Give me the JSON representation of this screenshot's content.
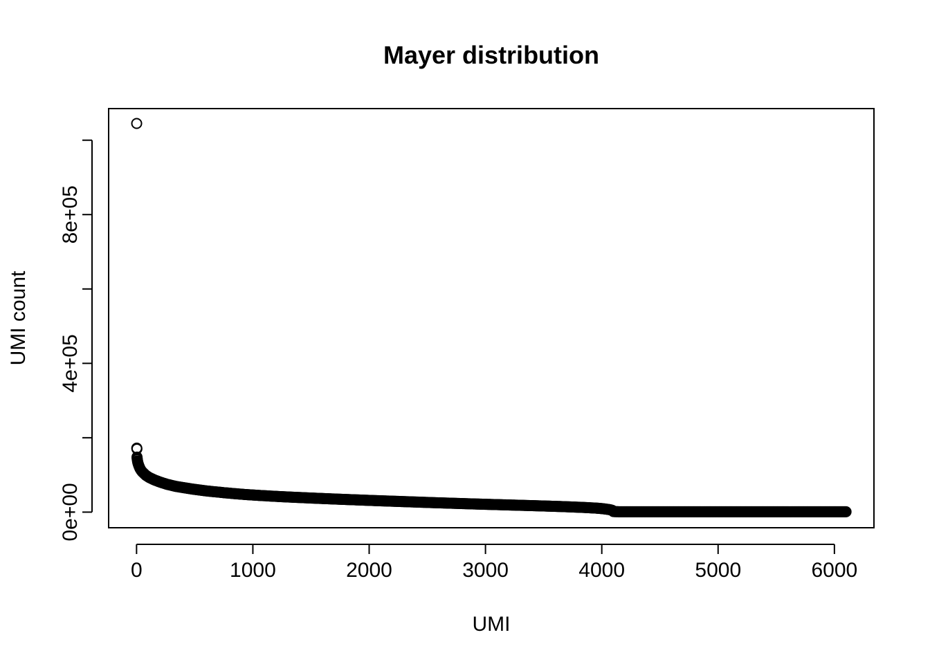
{
  "chart_data": {
    "type": "scatter",
    "title": "Mayer distribution",
    "xlabel": "UMI",
    "ylabel": "UMI count",
    "xlim": [
      -240,
      6340
    ],
    "ylim": [
      -42000,
      1085000
    ],
    "x_ticks": [
      0,
      1000,
      2000,
      3000,
      4000,
      5000,
      6000
    ],
    "x_tick_labels": [
      "0",
      "1000",
      "2000",
      "3000",
      "4000",
      "5000",
      "6000"
    ],
    "y_ticks": [
      0,
      200000,
      400000,
      600000,
      800000,
      1000000
    ],
    "y_tick_labels": [
      "0e+00",
      "",
      "4e+05",
      "",
      "8e+05",
      ""
    ],
    "grid": false,
    "legend": "none",
    "marker": "open-circle",
    "color": "#000000",
    "series": [
      {
        "x": [
          1,
          2,
          3,
          4,
          5,
          6,
          8,
          10,
          12,
          15,
          18,
          22,
          26,
          30,
          36,
          42,
          50,
          60,
          70,
          80,
          95,
          110,
          130,
          150,
          175,
          200,
          230,
          260,
          300,
          340,
          380,
          430,
          480,
          540,
          600,
          680,
          760,
          850,
          950,
          1050,
          1150,
          1250,
          1350,
          1450,
          1550,
          1650,
          1750,
          1850,
          1950,
          2050,
          2150,
          2250,
          2350,
          2450,
          2550,
          2650,
          2750,
          2850,
          2950,
          3050,
          3150,
          3250,
          3350,
          3450,
          3550,
          3650,
          3750,
          3850,
          3950,
          4000,
          4040,
          4070,
          4090,
          4100,
          4150,
          4250,
          4350,
          4450,
          4550,
          4650,
          4750,
          4850,
          4950,
          5050,
          5150,
          5250,
          5350,
          5450,
          5550,
          5650,
          5750,
          5850,
          5950,
          6050,
          6100
        ],
        "y": [
          1045000,
          172000,
          170000,
          148000,
          145000,
          142000,
          138000,
          135000,
          132000,
          129000,
          126000,
          123000,
          120000,
          117000,
          114000,
          111000,
          108000,
          105000,
          102000,
          99000,
          96000,
          93000,
          90000,
          87000,
          84000,
          81000,
          78000,
          75000,
          72000,
          69000,
          67000,
          64500,
          62000,
          59500,
          57000,
          54500,
          52000,
          49500,
          47000,
          45000,
          43200,
          41500,
          40000,
          38600,
          37200,
          35900,
          34600,
          33400,
          32200,
          31000,
          29900,
          28800,
          27700,
          26600,
          25500,
          24500,
          23500,
          22500,
          21500,
          20600,
          19700,
          18800,
          17900,
          17000,
          16000,
          15000,
          13800,
          12500,
          10800,
          9500,
          8000,
          6500,
          5000,
          1500,
          1000,
          1000,
          1000,
          1000,
          1000,
          1000,
          1000,
          1000,
          1000,
          1000,
          1000,
          1000,
          1000,
          1000,
          1000,
          1000,
          1000,
          1000,
          1000,
          1000,
          1000
        ]
      }
    ]
  }
}
